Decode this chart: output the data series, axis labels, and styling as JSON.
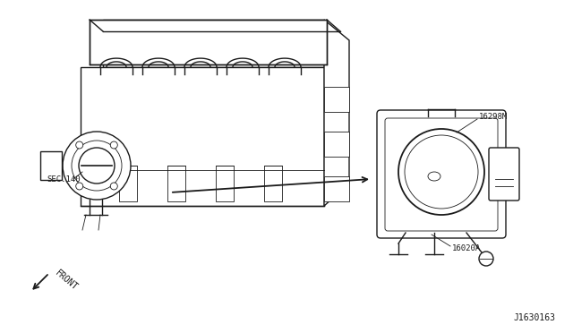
{
  "bg_color": "#ffffff",
  "line_color": "#1a1a1a",
  "label_sec140": "SEC.140",
  "label_16298M": "16298M",
  "label_16020A": "16020A",
  "label_front": "FRONT",
  "label_diagram_id": "J1630163",
  "lw_main": 1.0,
  "lw_thin": 0.6,
  "lw_thick": 1.4
}
